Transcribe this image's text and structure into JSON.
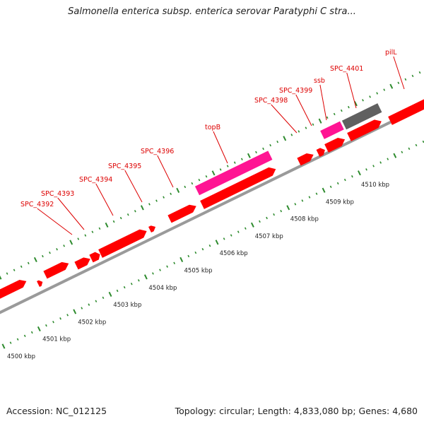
{
  "title": "Salmonella enterica subsp. enterica serovar Paratyphi C stra...",
  "footer": {
    "accession": "Accession: NC_012125",
    "topology": "Topology: circular; Length: 4,833,080 bp; Genes: 4,680"
  },
  "colors": {
    "gene": "#ff0000",
    "rna": "#ff1493",
    "pseudo": "#606060",
    "backbone": "#9a9a9a",
    "tick": "#2e8b2e",
    "label": "#dd0000"
  },
  "scale": {
    "ticks": [
      {
        "kbp": 4500,
        "label": "4500 kbp"
      },
      {
        "kbp": 4501,
        "label": "4501 kbp"
      },
      {
        "kbp": 4502,
        "label": "4502 kbp"
      },
      {
        "kbp": 4503,
        "label": "4503 kbp"
      },
      {
        "kbp": 4504,
        "label": "4504 kbp"
      },
      {
        "kbp": 4505,
        "label": "4505 kbp"
      },
      {
        "kbp": 4506,
        "label": "4506 kbp"
      },
      {
        "kbp": 4507,
        "label": "4507 kbp"
      },
      {
        "kbp": 4508,
        "label": "4508 kbp"
      },
      {
        "kbp": 4509,
        "label": "4509 kbp"
      },
      {
        "kbp": 4510,
        "label": "4510 kbp"
      }
    ]
  },
  "gene_labels": [
    {
      "name": "SPC_4392"
    },
    {
      "name": "SPC_4393"
    },
    {
      "name": "SPC_4394"
    },
    {
      "name": "SPC_4395"
    },
    {
      "name": "SPC_4396"
    },
    {
      "name": "topB"
    },
    {
      "name": "SPC_4398"
    },
    {
      "name": "SPC_4399"
    },
    {
      "name": "ssb"
    },
    {
      "name": "SPC_4401"
    },
    {
      "name": "pilL"
    }
  ]
}
